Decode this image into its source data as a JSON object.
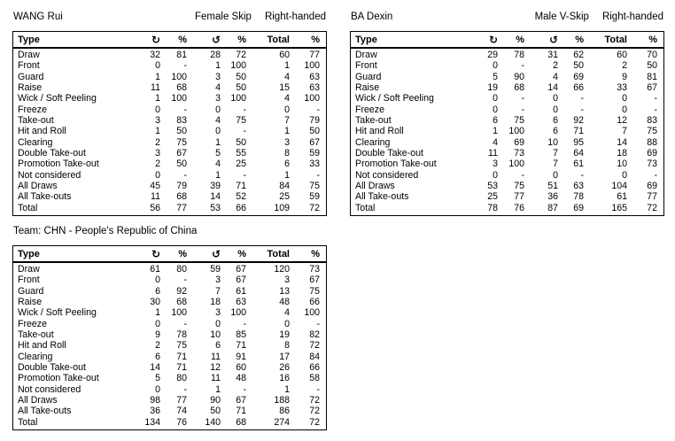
{
  "page": {
    "background": "#ffffff",
    "text_color": "#000000",
    "border_color": "#000000"
  },
  "columns": {
    "type_label": "Type",
    "cw_icon": "↻",
    "ccw_icon": "↺",
    "pct_label": "%",
    "total_label": "Total"
  },
  "tables": [
    {
      "title": "WANG Rui",
      "role": "Female Skip",
      "handedness": "Right-handed",
      "rows": [
        {
          "type": "Draw",
          "cw": "32",
          "cw_pct": "81",
          "ccw": "28",
          "ccw_pct": "72",
          "total": "60",
          "total_pct": "77"
        },
        {
          "type": "Front",
          "cw": "0",
          "cw_pct": "-",
          "ccw": "1",
          "ccw_pct": "100",
          "total": "1",
          "total_pct": "100"
        },
        {
          "type": "Guard",
          "cw": "1",
          "cw_pct": "100",
          "ccw": "3",
          "ccw_pct": "50",
          "total": "4",
          "total_pct": "63"
        },
        {
          "type": "Raise",
          "cw": "11",
          "cw_pct": "68",
          "ccw": "4",
          "ccw_pct": "50",
          "total": "15",
          "total_pct": "63"
        },
        {
          "type": "Wick / Soft Peeling",
          "cw": "1",
          "cw_pct": "100",
          "ccw": "3",
          "ccw_pct": "100",
          "total": "4",
          "total_pct": "100"
        },
        {
          "type": "Freeze",
          "cw": "0",
          "cw_pct": "-",
          "ccw": "0",
          "ccw_pct": "-",
          "total": "0",
          "total_pct": "-"
        },
        {
          "type": "Take-out",
          "cw": "3",
          "cw_pct": "83",
          "ccw": "4",
          "ccw_pct": "75",
          "total": "7",
          "total_pct": "79"
        },
        {
          "type": "Hit and Roll",
          "cw": "1",
          "cw_pct": "50",
          "ccw": "0",
          "ccw_pct": "-",
          "total": "1",
          "total_pct": "50"
        },
        {
          "type": "Clearing",
          "cw": "2",
          "cw_pct": "75",
          "ccw": "1",
          "ccw_pct": "50",
          "total": "3",
          "total_pct": "67"
        },
        {
          "type": "Double Take-out",
          "cw": "3",
          "cw_pct": "67",
          "ccw": "5",
          "ccw_pct": "55",
          "total": "8",
          "total_pct": "59"
        },
        {
          "type": "Promotion Take-out",
          "cw": "2",
          "cw_pct": "50",
          "ccw": "4",
          "ccw_pct": "25",
          "total": "6",
          "total_pct": "33"
        },
        {
          "type": "Not considered",
          "cw": "0",
          "cw_pct": "-",
          "ccw": "1",
          "ccw_pct": "-",
          "total": "1",
          "total_pct": "-"
        },
        {
          "type": "All Draws",
          "cw": "45",
          "cw_pct": "79",
          "ccw": "39",
          "ccw_pct": "71",
          "total": "84",
          "total_pct": "75"
        },
        {
          "type": "All Take-outs",
          "cw": "11",
          "cw_pct": "68",
          "ccw": "14",
          "ccw_pct": "52",
          "total": "25",
          "total_pct": "59"
        },
        {
          "type": "Total",
          "cw": "56",
          "cw_pct": "77",
          "ccw": "53",
          "ccw_pct": "66",
          "total": "109",
          "total_pct": "72"
        }
      ]
    },
    {
      "title": "BA Dexin",
      "role": "Male V-Skip",
      "handedness": "Right-handed",
      "rows": [
        {
          "type": "Draw",
          "cw": "29",
          "cw_pct": "78",
          "ccw": "31",
          "ccw_pct": "62",
          "total": "60",
          "total_pct": "70"
        },
        {
          "type": "Front",
          "cw": "0",
          "cw_pct": "-",
          "ccw": "2",
          "ccw_pct": "50",
          "total": "2",
          "total_pct": "50"
        },
        {
          "type": "Guard",
          "cw": "5",
          "cw_pct": "90",
          "ccw": "4",
          "ccw_pct": "69",
          "total": "9",
          "total_pct": "81"
        },
        {
          "type": "Raise",
          "cw": "19",
          "cw_pct": "68",
          "ccw": "14",
          "ccw_pct": "66",
          "total": "33",
          "total_pct": "67"
        },
        {
          "type": "Wick / Soft Peeling",
          "cw": "0",
          "cw_pct": "-",
          "ccw": "0",
          "ccw_pct": "-",
          "total": "0",
          "total_pct": "-"
        },
        {
          "type": "Freeze",
          "cw": "0",
          "cw_pct": "-",
          "ccw": "0",
          "ccw_pct": "-",
          "total": "0",
          "total_pct": "-"
        },
        {
          "type": "Take-out",
          "cw": "6",
          "cw_pct": "75",
          "ccw": "6",
          "ccw_pct": "92",
          "total": "12",
          "total_pct": "83"
        },
        {
          "type": "Hit and Roll",
          "cw": "1",
          "cw_pct": "100",
          "ccw": "6",
          "ccw_pct": "71",
          "total": "7",
          "total_pct": "75"
        },
        {
          "type": "Clearing",
          "cw": "4",
          "cw_pct": "69",
          "ccw": "10",
          "ccw_pct": "95",
          "total": "14",
          "total_pct": "88"
        },
        {
          "type": "Double Take-out",
          "cw": "11",
          "cw_pct": "73",
          "ccw": "7",
          "ccw_pct": "64",
          "total": "18",
          "total_pct": "69"
        },
        {
          "type": "Promotion Take-out",
          "cw": "3",
          "cw_pct": "100",
          "ccw": "7",
          "ccw_pct": "61",
          "total": "10",
          "total_pct": "73"
        },
        {
          "type": "Not considered",
          "cw": "0",
          "cw_pct": "-",
          "ccw": "0",
          "ccw_pct": "-",
          "total": "0",
          "total_pct": "-"
        },
        {
          "type": "All Draws",
          "cw": "53",
          "cw_pct": "75",
          "ccw": "51",
          "ccw_pct": "63",
          "total": "104",
          "total_pct": "69"
        },
        {
          "type": "All Take-outs",
          "cw": "25",
          "cw_pct": "77",
          "ccw": "36",
          "ccw_pct": "78",
          "total": "61",
          "total_pct": "77"
        },
        {
          "type": "Total",
          "cw": "78",
          "cw_pct": "76",
          "ccw": "87",
          "ccw_pct": "69",
          "total": "165",
          "total_pct": "72"
        }
      ]
    },
    {
      "title": "Team: CHN - People's Republic of China",
      "role": "",
      "handedness": "",
      "rows": [
        {
          "type": "Draw",
          "cw": "61",
          "cw_pct": "80",
          "ccw": "59",
          "ccw_pct": "67",
          "total": "120",
          "total_pct": "73"
        },
        {
          "type": "Front",
          "cw": "0",
          "cw_pct": "-",
          "ccw": "3",
          "ccw_pct": "67",
          "total": "3",
          "total_pct": "67"
        },
        {
          "type": "Guard",
          "cw": "6",
          "cw_pct": "92",
          "ccw": "7",
          "ccw_pct": "61",
          "total": "13",
          "total_pct": "75"
        },
        {
          "type": "Raise",
          "cw": "30",
          "cw_pct": "68",
          "ccw": "18",
          "ccw_pct": "63",
          "total": "48",
          "total_pct": "66"
        },
        {
          "type": "Wick / Soft Peeling",
          "cw": "1",
          "cw_pct": "100",
          "ccw": "3",
          "ccw_pct": "100",
          "total": "4",
          "total_pct": "100"
        },
        {
          "type": "Freeze",
          "cw": "0",
          "cw_pct": "-",
          "ccw": "0",
          "ccw_pct": "-",
          "total": "0",
          "total_pct": "-"
        },
        {
          "type": "Take-out",
          "cw": "9",
          "cw_pct": "78",
          "ccw": "10",
          "ccw_pct": "85",
          "total": "19",
          "total_pct": "82"
        },
        {
          "type": "Hit and Roll",
          "cw": "2",
          "cw_pct": "75",
          "ccw": "6",
          "ccw_pct": "71",
          "total": "8",
          "total_pct": "72"
        },
        {
          "type": "Clearing",
          "cw": "6",
          "cw_pct": "71",
          "ccw": "11",
          "ccw_pct": "91",
          "total": "17",
          "total_pct": "84"
        },
        {
          "type": "Double Take-out",
          "cw": "14",
          "cw_pct": "71",
          "ccw": "12",
          "ccw_pct": "60",
          "total": "26",
          "total_pct": "66"
        },
        {
          "type": "Promotion Take-out",
          "cw": "5",
          "cw_pct": "80",
          "ccw": "11",
          "ccw_pct": "48",
          "total": "16",
          "total_pct": "58"
        },
        {
          "type": "Not considered",
          "cw": "0",
          "cw_pct": "-",
          "ccw": "1",
          "ccw_pct": "-",
          "total": "1",
          "total_pct": "-"
        },
        {
          "type": "All Draws",
          "cw": "98",
          "cw_pct": "77",
          "ccw": "90",
          "ccw_pct": "67",
          "total": "188",
          "total_pct": "72"
        },
        {
          "type": "All Take-outs",
          "cw": "36",
          "cw_pct": "74",
          "ccw": "50",
          "ccw_pct": "71",
          "total": "86",
          "total_pct": "72"
        },
        {
          "type": "Total",
          "cw": "134",
          "cw_pct": "76",
          "ccw": "140",
          "ccw_pct": "68",
          "total": "274",
          "total_pct": "72"
        }
      ]
    }
  ]
}
